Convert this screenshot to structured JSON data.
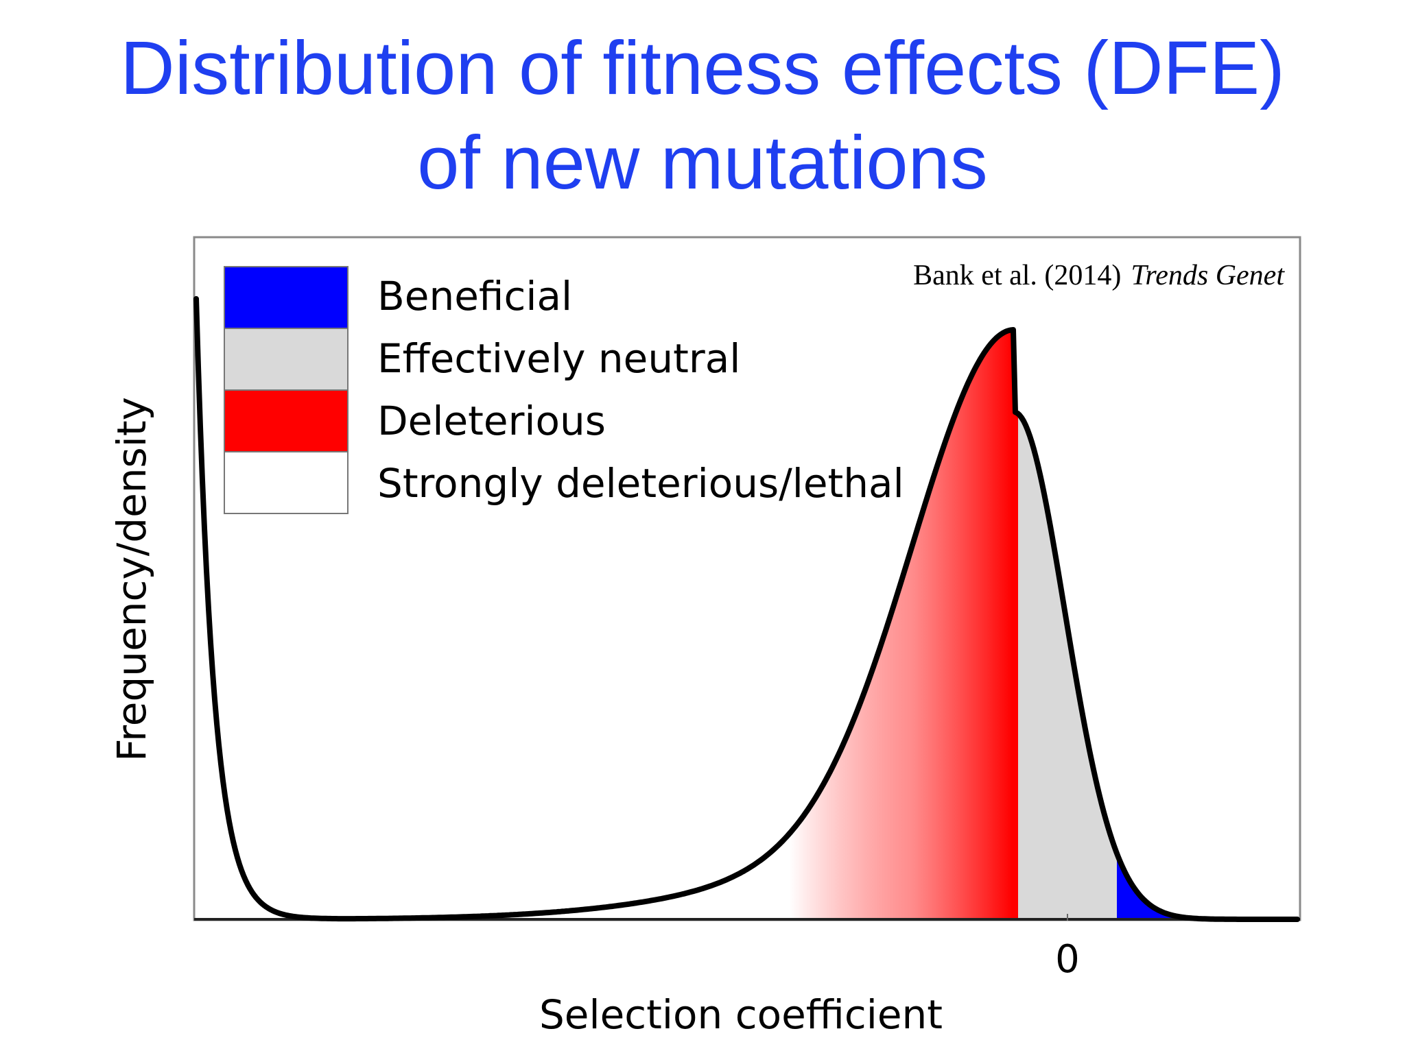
{
  "slide": {
    "title_line1": "Distribution of fitness effects (DFE)",
    "title_line2": "of new mutations"
  },
  "chart_data": {
    "type": "area",
    "title": "",
    "xlabel": "Selection coefficient",
    "ylabel": "Frequency/density",
    "x_ticks": [
      "0"
    ],
    "citation": {
      "authors": "Bank et al. (2014)",
      "journal": "Trends Genet"
    },
    "legend": {
      "placement": "top-left",
      "entries": [
        {
          "label": "Beneficial",
          "color": "#0000ff"
        },
        {
          "label": "Effectively neutral",
          "color": "#d9d9d9"
        },
        {
          "label": "Deleterious",
          "color": "#ff0000"
        },
        {
          "label": "Strongly deleterious/lethal",
          "color": "#ffffff"
        }
      ]
    },
    "regions_order_left_to_right": [
      "Strongly deleterious/lethal",
      "Deleterious",
      "Effectively neutral",
      "Beneficial"
    ],
    "curve_color": "#000000",
    "title_color": "#1f3ff0"
  }
}
